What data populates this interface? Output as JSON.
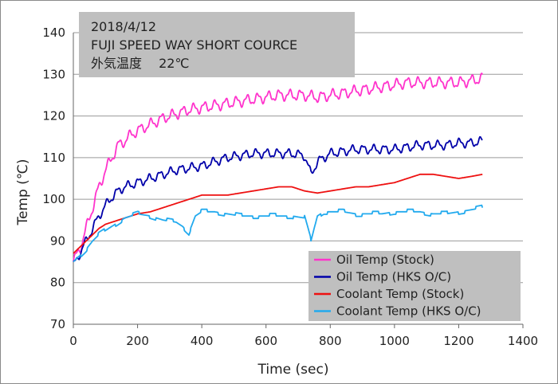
{
  "chart_data": {
    "type": "line",
    "annotation_lines": [
      "2018/4/12",
      "FUJI SPEED WAY SHORT COURCE",
      "外気温度　 22℃"
    ],
    "xlabel": "Time (sec)",
    "ylabel": "Temp (℃)",
    "xlim": [
      0,
      1400
    ],
    "ylim": [
      70,
      140
    ],
    "x_ticks": [
      0,
      200,
      400,
      600,
      800,
      1000,
      1200,
      1400
    ],
    "y_ticks": [
      70,
      80,
      90,
      100,
      110,
      120,
      130,
      140
    ],
    "grid": "horizontal",
    "legend_position": "bottom-right",
    "series": [
      {
        "name": "Oil Temp (Stock)",
        "color": "#ff33cc",
        "x": [
          0,
          20,
          40,
          60,
          80,
          100,
          120,
          140,
          160,
          180,
          200,
          240,
          280,
          320,
          360,
          400,
          440,
          480,
          520,
          560,
          600,
          640,
          680,
          720,
          760,
          800,
          840,
          880,
          920,
          960,
          1000,
          1040,
          1080,
          1120,
          1160,
          1200,
          1240,
          1275
        ],
        "y": [
          85,
          88,
          93,
          98,
          103,
          107,
          110,
          113,
          114,
          115.5,
          116.5,
          118,
          119.5,
          120.5,
          121.5,
          122,
          122.5,
          123,
          123.5,
          124,
          124.5,
          125,
          125,
          125,
          124.5,
          125,
          125.5,
          126,
          126.5,
          127,
          127.5,
          128,
          128,
          128,
          128,
          128,
          128.5,
          129
        ]
      },
      {
        "name": "Oil Temp (HKS O/C)",
        "color": "#0000aa",
        "x": [
          0,
          20,
          40,
          60,
          80,
          100,
          120,
          140,
          160,
          180,
          200,
          240,
          280,
          320,
          360,
          400,
          440,
          480,
          520,
          560,
          600,
          640,
          680,
          720,
          740,
          760,
          800,
          840,
          880,
          920,
          960,
          1000,
          1040,
          1080,
          1120,
          1160,
          1200,
          1240,
          1275
        ],
        "y": [
          84,
          87,
          90,
          93,
          96,
          98.5,
          100.5,
          102,
          103,
          103.5,
          104,
          105,
          106,
          107,
          107.5,
          108,
          109,
          110,
          110.5,
          111,
          111,
          111,
          111,
          110.5,
          106,
          109,
          111,
          111.5,
          112,
          112,
          112,
          112,
          112.5,
          113,
          113,
          113,
          113.5,
          113.5,
          114
        ]
      },
      {
        "name": "Coolant Temp (Stock)",
        "color": "#ee1111",
        "x": [
          0,
          20,
          40,
          60,
          80,
          100,
          120,
          140,
          160,
          180,
          200,
          240,
          280,
          320,
          360,
          400,
          440,
          480,
          520,
          560,
          600,
          640,
          680,
          720,
          760,
          800,
          840,
          880,
          920,
          960,
          1000,
          1040,
          1080,
          1120,
          1160,
          1200,
          1240,
          1275
        ],
        "y": [
          87,
          88.5,
          90,
          91.5,
          93,
          94,
          94.5,
          95,
          95.5,
          96,
          96.5,
          97,
          98,
          99,
          100,
          101,
          101,
          101,
          101.5,
          102,
          102.5,
          103,
          103,
          102,
          101.5,
          102,
          102.5,
          103,
          103,
          103.5,
          104,
          105,
          106,
          106,
          105.5,
          105,
          105.5,
          106
        ]
      },
      {
        "name": "Coolant Temp (HKS O/C)",
        "color": "#22aaee",
        "x": [
          0,
          20,
          40,
          60,
          80,
          100,
          120,
          140,
          160,
          180,
          200,
          240,
          280,
          320,
          340,
          360,
          380,
          400,
          440,
          480,
          520,
          560,
          600,
          640,
          680,
          720,
          740,
          760,
          780,
          800,
          840,
          880,
          920,
          960,
          1000,
          1040,
          1080,
          1120,
          1160,
          1200,
          1240,
          1275
        ],
        "y": [
          85,
          86.5,
          88,
          90,
          91.5,
          92.5,
          93.5,
          94.5,
          95.5,
          96,
          96.5,
          96,
          95,
          94.5,
          93.5,
          92,
          96,
          97,
          97,
          96.5,
          96,
          96,
          96,
          96,
          96,
          95.5,
          90,
          96,
          97,
          97,
          97,
          96.5,
          96.5,
          96.5,
          97,
          97,
          97,
          96.5,
          96.5,
          97,
          97.5,
          98
        ]
      }
    ]
  }
}
